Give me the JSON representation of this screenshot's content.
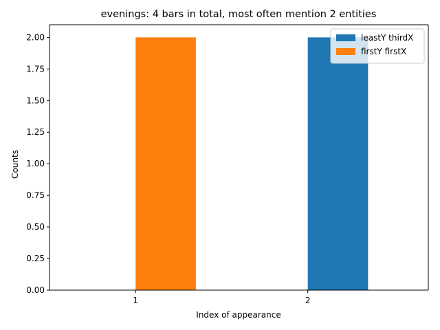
{
  "chart_data": {
    "type": "bar",
    "title": "evenings: 4 bars in total, most often mention  2 entities",
    "xlabel": "Index of appearance",
    "ylabel": "Counts",
    "categories": [
      "1",
      "2"
    ],
    "ylim": [
      0,
      2.1
    ],
    "yticks": [
      "0.00",
      "0.25",
      "0.50",
      "0.75",
      "1.00",
      "1.25",
      "1.50",
      "1.75",
      "2.00"
    ],
    "grid": false,
    "legend_position": "top-right",
    "series": [
      {
        "name": "leastY thirdX",
        "color": "#1f77b4",
        "values": [
          0,
          2
        ]
      },
      {
        "name": "firstY firstX",
        "color": "#ff7f0e",
        "values": [
          2,
          0
        ]
      }
    ]
  }
}
